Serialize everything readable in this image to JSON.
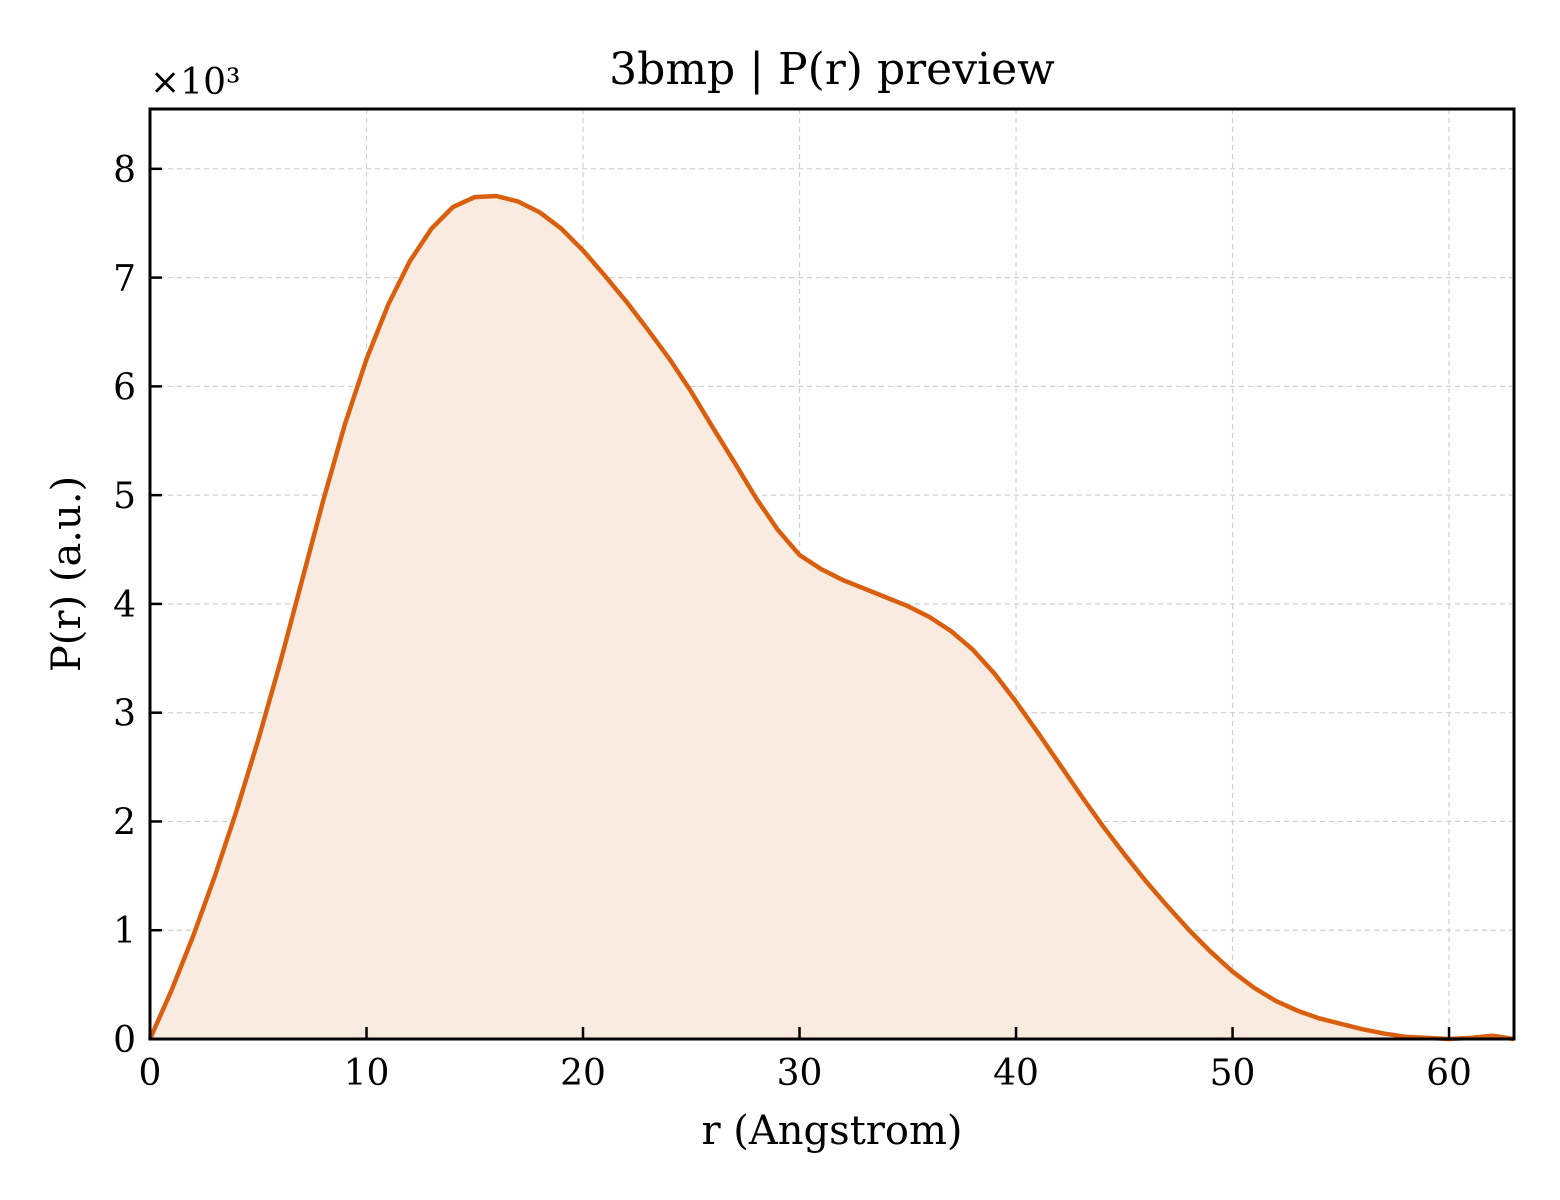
{
  "chart_data": {
    "type": "area",
    "title": "3bmp | P(r) preview",
    "xlabel": "r (Angstrom)",
    "ylabel": "P(r) (a.u.)",
    "y_multiplier_label": "×10³",
    "xlim": [
      0,
      63
    ],
    "ylim": [
      0,
      8.55
    ],
    "y_units_multiplier": 1000,
    "xticks": [
      0,
      10,
      20,
      30,
      40,
      50,
      60
    ],
    "yticks": [
      0,
      1,
      2,
      3,
      4,
      5,
      6,
      7,
      8
    ],
    "grid": true,
    "legend": "none",
    "line_color": "#d95f0e",
    "fill_color": "#f9ebe0",
    "series": [
      {
        "x": [
          0,
          1,
          2,
          3,
          4,
          5,
          6,
          7,
          8,
          9,
          10,
          11,
          12,
          13,
          14,
          15,
          16,
          17,
          18,
          19,
          20,
          21,
          22,
          23,
          24,
          25,
          26,
          27,
          28,
          29,
          30,
          31,
          32,
          33,
          34,
          35,
          36,
          37,
          38,
          39,
          40,
          41,
          42,
          43,
          44,
          45,
          46,
          47,
          48,
          49,
          50,
          51,
          52,
          53,
          54,
          55,
          56,
          57,
          58,
          59,
          60,
          61,
          62,
          63
        ],
        "y": [
          0.0,
          0.45,
          0.95,
          1.5,
          2.1,
          2.75,
          3.45,
          4.2,
          4.95,
          5.65,
          6.25,
          6.75,
          7.15,
          7.45,
          7.65,
          7.74,
          7.75,
          7.7,
          7.6,
          7.45,
          7.25,
          7.02,
          6.78,
          6.52,
          6.25,
          5.95,
          5.62,
          5.3,
          4.97,
          4.68,
          4.45,
          4.32,
          4.22,
          4.14,
          4.06,
          3.98,
          3.88,
          3.75,
          3.58,
          3.36,
          3.1,
          2.82,
          2.53,
          2.24,
          1.96,
          1.7,
          1.45,
          1.22,
          1.0,
          0.8,
          0.62,
          0.47,
          0.35,
          0.26,
          0.19,
          0.14,
          0.09,
          0.05,
          0.02,
          0.01,
          0.0,
          0.01,
          0.03,
          0.0
        ]
      }
    ]
  }
}
